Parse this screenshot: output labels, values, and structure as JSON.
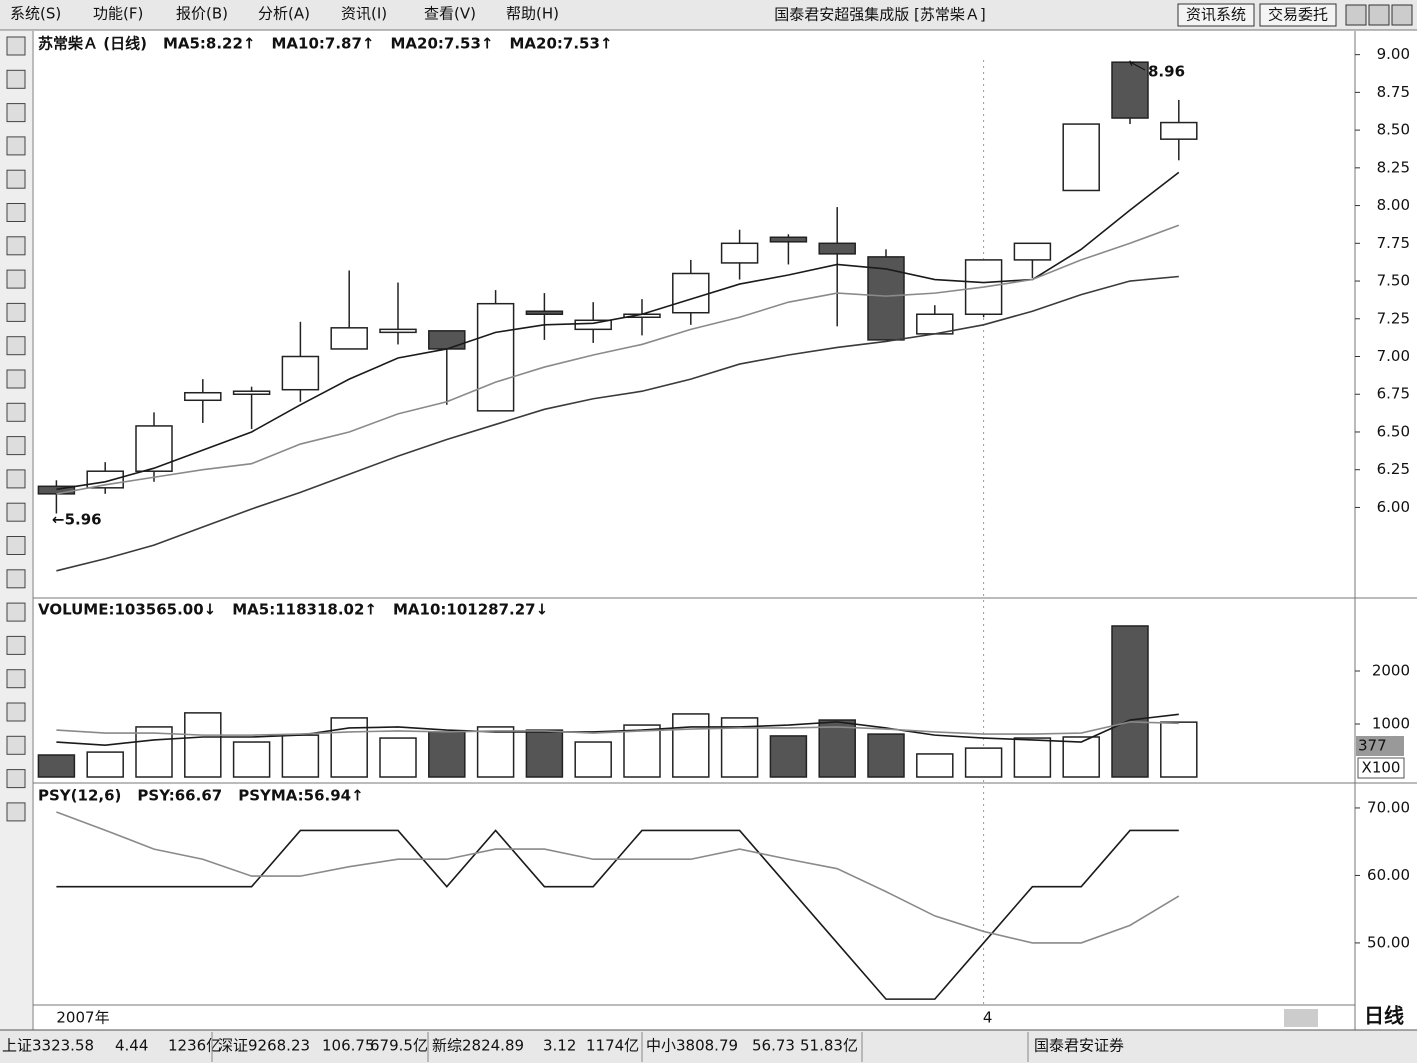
{
  "menu": [
    "系统(S)",
    "功能(F)",
    "报价(B)",
    "分析(A)",
    "资讯(I)",
    "查看(V)",
    "帮助(H)"
  ],
  "window_title": "国泰君安超强集成版 [苏常柴Ａ]",
  "buttons": [
    "资讯系统",
    "交易委托"
  ],
  "chart_data": [
    {
      "type": "candlestick",
      "title": "苏常柴Ａ (日线)",
      "categories": [
        "2007年",
        null,
        null,
        null,
        null,
        null,
        null,
        null,
        null,
        null,
        null,
        null,
        null,
        null,
        null,
        null,
        null,
        null,
        null,
        "4",
        null,
        null,
        null,
        null
      ],
      "open": [
        6.14,
        6.13,
        6.24,
        6.71,
        6.75,
        6.78,
        7.05,
        7.16,
        7.17,
        6.64,
        7.3,
        7.18,
        7.26,
        7.29,
        7.62,
        7.79,
        7.75,
        7.66,
        7.15,
        7.28,
        7.64,
        8.1,
        8.95,
        8.44
      ],
      "high": [
        6.18,
        6.3,
        6.63,
        6.85,
        6.8,
        7.23,
        7.57,
        7.49,
        7.17,
        7.44,
        7.42,
        7.36,
        7.38,
        7.64,
        7.84,
        7.81,
        7.99,
        7.71,
        7.34,
        7.64,
        7.75,
        8.54,
        8.96,
        8.7
      ],
      "low": [
        5.96,
        6.09,
        6.17,
        6.56,
        6.52,
        6.7,
        7.05,
        7.08,
        6.68,
        6.64,
        7.11,
        7.09,
        7.14,
        7.21,
        7.51,
        7.61,
        7.2,
        7.11,
        7.15,
        7.26,
        7.52,
        8.1,
        8.54,
        8.3
      ],
      "close": [
        6.09,
        6.24,
        6.54,
        6.76,
        6.77,
        7.0,
        7.19,
        7.18,
        7.05,
        7.35,
        7.28,
        7.24,
        7.28,
        7.55,
        7.75,
        7.76,
        7.68,
        7.11,
        7.28,
        7.64,
        7.75,
        8.54,
        8.58,
        8.55
      ],
      "up_color": "#ffffff",
      "down_color": "#555555",
      "series": [
        {
          "name": "MA5:8.22↑",
          "color": "#1a1a1a",
          "values": [
            6.12,
            6.17,
            6.26,
            6.38,
            6.5,
            6.68,
            6.85,
            6.99,
            7.05,
            7.16,
            7.21,
            7.22,
            7.28,
            7.38,
            7.48,
            7.54,
            7.61,
            7.58,
            7.51,
            7.49,
            7.51,
            7.71,
            7.97,
            8.22
          ]
        },
        {
          "name": "MA10:7.87↑",
          "color": "#8a8a8a",
          "values": [
            6.09,
            6.15,
            6.2,
            6.25,
            6.29,
            6.42,
            6.5,
            6.62,
            6.7,
            6.83,
            6.93,
            7.01,
            7.08,
            7.18,
            7.26,
            7.36,
            7.42,
            7.4,
            7.42,
            7.46,
            7.51,
            7.64,
            7.75,
            7.87
          ]
        },
        {
          "name": "MA20:7.53↑",
          "color": "#3a3a3a",
          "values": [
            5.58,
            5.66,
            5.75,
            5.87,
            5.99,
            6.1,
            6.22,
            6.34,
            6.45,
            6.55,
            6.65,
            6.72,
            6.77,
            6.85,
            6.95,
            7.01,
            7.06,
            7.1,
            7.15,
            7.21,
            7.3,
            7.41,
            7.5,
            7.53
          ]
        }
      ],
      "extra_label": "MA20:7.53↑",
      "annotations": [
        "←5.96",
        "8.96"
      ],
      "ylim": [
        5.4,
        9.15
      ],
      "yticks": [
        {
          "value": 6,
          "label": "6.00"
        },
        6.25,
        {
          "value": 6.5,
          "label": "6.50"
        },
        6.75,
        {
          "value": 7,
          "label": "7.00"
        },
        7.25,
        {
          "value": 7.5,
          "label": "7.50"
        },
        7.75,
        {
          "value": 8,
          "label": "8.00"
        },
        8.25,
        {
          "value": 8.5,
          "label": "8.50"
        },
        8.75,
        {
          "value": 9,
          "label": "9.00"
        }
      ]
    },
    {
      "type": "volume",
      "bars": {
        "name": "VOLUME:103565.00↓",
        "values": [
          415,
          470,
          945,
          1210,
          660,
          790,
          1115,
          735,
          850,
          945,
          885,
          660,
          980,
          1190,
          1115,
          775,
          1075,
          810,
          435,
          545,
          735,
          755,
          2850,
          1035
        ]
      },
      "series": [
        {
          "name": "MA5:118318.02↑",
          "color": "#1a1a1a",
          "values": [
            660,
            600,
            700,
            755,
            755,
            790,
            925,
            945,
            885,
            850,
            850,
            850,
            885,
            945,
            945,
            980,
            1040,
            925,
            790,
            735,
            700,
            660,
            1075,
            1183
          ]
        },
        {
          "name": "MA10:101287.27↓",
          "color": "#8a8a8a",
          "values": [
            885,
            830,
            830,
            790,
            790,
            810,
            850,
            870,
            850,
            870,
            870,
            830,
            870,
            905,
            925,
            925,
            945,
            905,
            850,
            810,
            810,
            830,
            1040,
            1013
          ]
        }
      ],
      "axis_notes": [
        "377",
        "X100"
      ],
      "ylim": [
        0,
        3340
      ],
      "yticks": [
        1000,
        2000
      ]
    },
    {
      "type": "line",
      "title": "PSY(12,6)",
      "series": [
        {
          "name": "PSY:66.67",
          "color": "#1a1a1a",
          "values": [
            58.33,
            58.33,
            58.33,
            58.33,
            58.33,
            66.67,
            66.67,
            66.67,
            58.33,
            66.67,
            58.33,
            58.33,
            66.67,
            66.67,
            66.67,
            58.33,
            50,
            41.67,
            41.67,
            50,
            58.33,
            58.33,
            66.67,
            66.67
          ]
        },
        {
          "name": "PSYMA:56.94↑",
          "color": "#8a8a8a",
          "values": [
            69.4,
            66.7,
            63.9,
            62.4,
            59.9,
            59.9,
            61.3,
            62.4,
            62.4,
            63.9,
            63.9,
            62.4,
            62.4,
            62.4,
            63.9,
            62.4,
            61.0,
            57.6,
            54.0,
            51.7,
            50.0,
            50.0,
            52.6,
            56.94
          ]
        }
      ],
      "ylim": [
        40.8,
        73.4
      ],
      "yticks": [
        {
          "value": 50,
          "label": "50.00"
        },
        {
          "value": 60,
          "label": "60.00"
        },
        {
          "value": 70,
          "label": "70.00"
        }
      ]
    }
  ],
  "status_bar": [
    "上证3323.58",
    "4.44",
    "1236亿",
    "深证9268.23",
    "106.75",
    "679.5亿",
    "新综2824.89",
    "3.12",
    "1174亿",
    "中小3808.79",
    "56.73",
    "51.83亿",
    "国泰君安证券"
  ],
  "period": "日线"
}
